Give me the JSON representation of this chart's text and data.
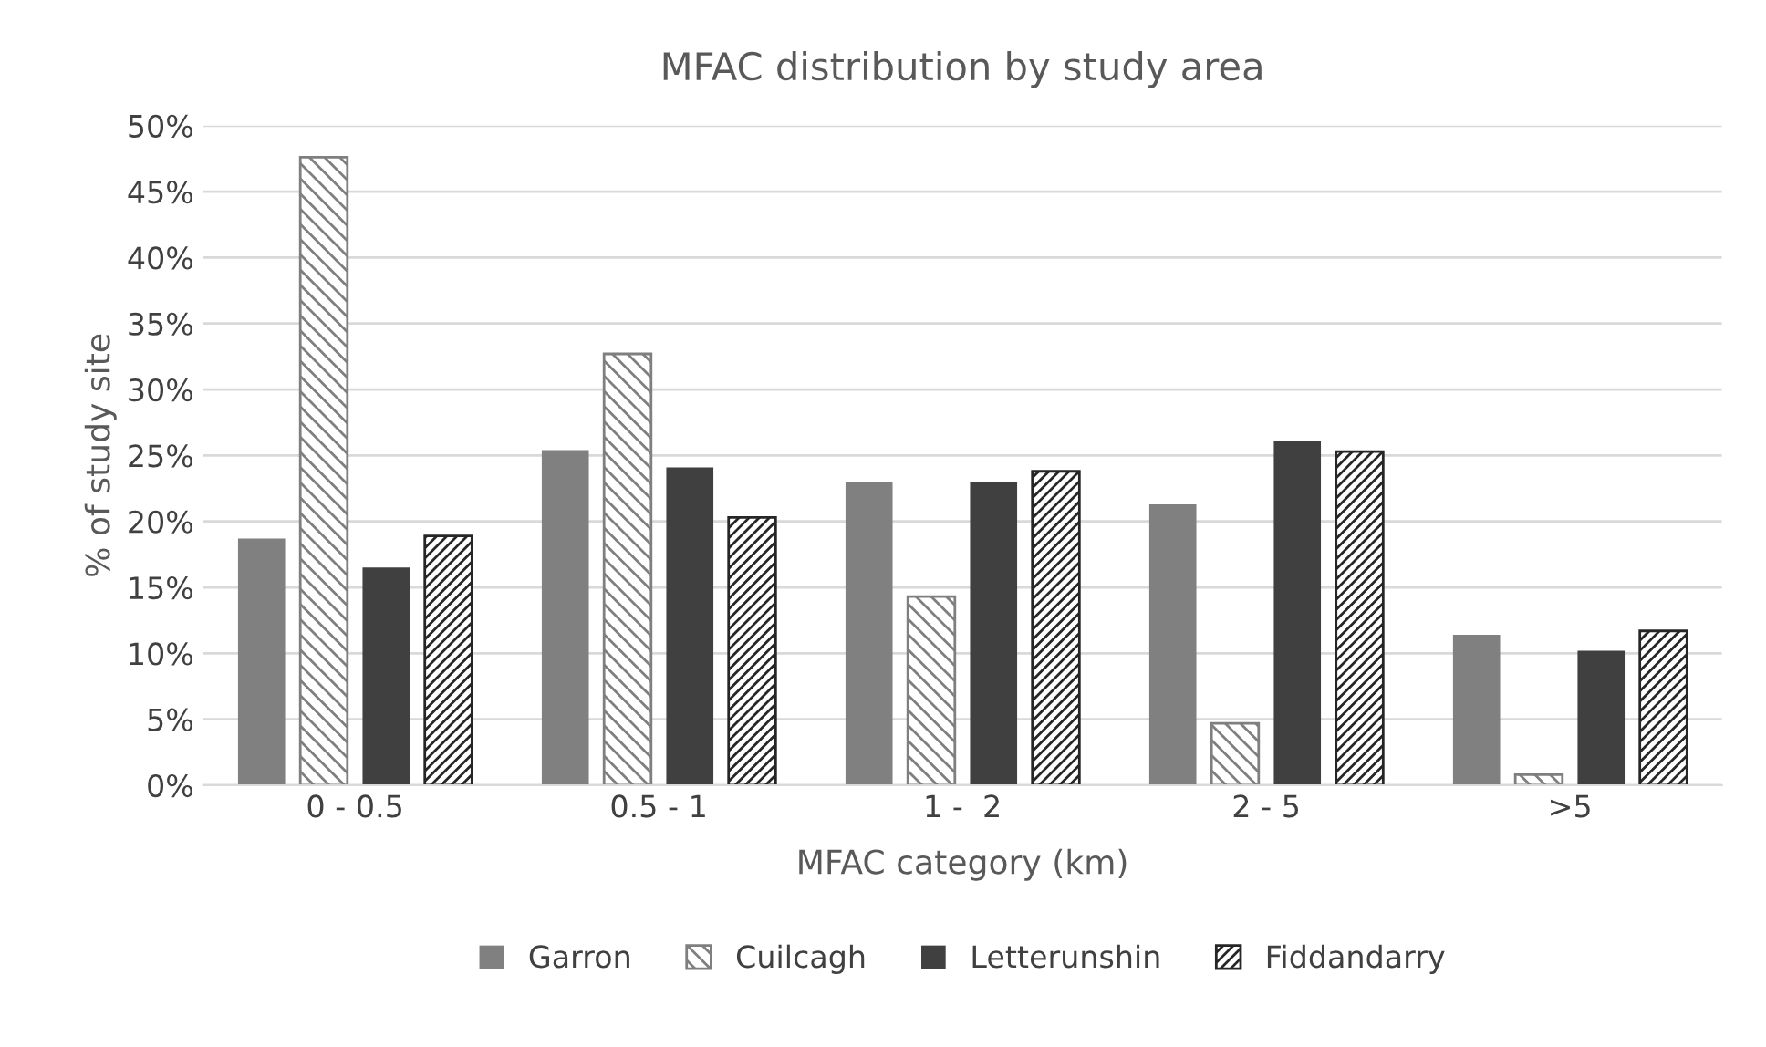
{
  "chart_data": {
    "type": "bar",
    "title": "MFAC distribution by study area",
    "xlabel": "MFAC category (km)",
    "ylabel": "% of study site",
    "categories": [
      "0 - 0.5",
      "0.5 - 1",
      "1 -  2",
      "2 - 5",
      ">5"
    ],
    "series": [
      {
        "name": "Garron",
        "color": "#808080",
        "values": [
          18.7,
          25.4,
          23.0,
          21.3,
          11.4
        ]
      },
      {
        "name": "Cuilcagh",
        "color": "#7f7f7f",
        "values": [
          47.6,
          32.7,
          14.3,
          4.7,
          0.8
        ]
      },
      {
        "name": "Letterunshin",
        "color": "#404040",
        "values": [
          16.5,
          24.1,
          23.0,
          26.1,
          10.2
        ]
      },
      {
        "name": "Fiddandarry",
        "color": "#262626",
        "values": [
          18.9,
          20.3,
          23.8,
          25.3,
          11.7
        ]
      }
    ],
    "ylim": [
      0,
      50
    ],
    "yticks": [
      {
        "value": 0,
        "label": "0%"
      },
      {
        "value": 5,
        "label": "5%"
      },
      {
        "value": 10,
        "label": "10%"
      },
      {
        "value": 15,
        "label": "15%"
      },
      {
        "value": 20,
        "label": "20%"
      },
      {
        "value": 25,
        "label": "25%"
      },
      {
        "value": 30,
        "label": "30%"
      },
      {
        "value": 35,
        "label": "35%"
      },
      {
        "value": 40,
        "label": "40%"
      },
      {
        "value": 45,
        "label": "45%"
      },
      {
        "value": 50,
        "label": "50%"
      }
    ],
    "grid": "y",
    "legend": "bottom"
  }
}
